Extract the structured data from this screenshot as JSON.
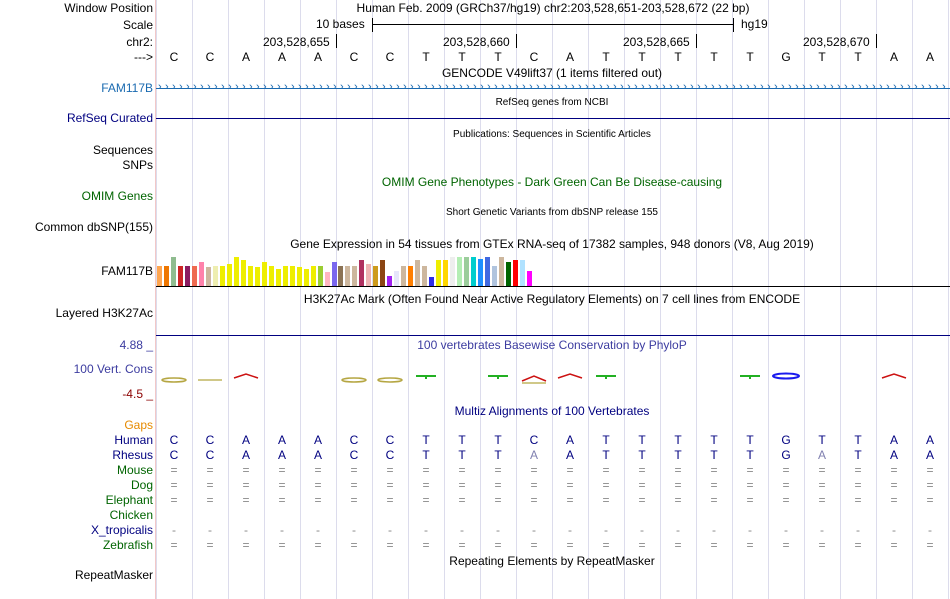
{
  "header": {
    "window_position_label": "Window Position",
    "scale_label": "Scale",
    "chr_label": "chr2:",
    "strand_label": "--->",
    "assembly_text": "Human Feb. 2009 (GRCh37/hg19)   chr2:203,528,651-203,528,672 (22 bp)",
    "scale_text": "10 bases",
    "scale_db": "hg19",
    "coord_ticks": [
      "203,528,655",
      "203,528,660",
      "203,528,665",
      "203,528,670"
    ]
  },
  "sequence": {
    "human": [
      "C",
      "C",
      "A",
      "A",
      "A",
      "C",
      "C",
      "T",
      "T",
      "T",
      "C",
      "A",
      "T",
      "T",
      "T",
      "T",
      "T",
      "G",
      "T",
      "T",
      "A",
      "A"
    ],
    "rhesus": [
      "C",
      "C",
      "A",
      "A",
      "A",
      "C",
      "C",
      "T",
      "T",
      "T",
      "A",
      "A",
      "T",
      "T",
      "T",
      "T",
      "T",
      "G",
      "A",
      "T",
      "A",
      "A"
    ]
  },
  "tracks": {
    "gencode": {
      "title": "GENCODE V49lift37 (1 items filtered out)",
      "label": "FAM117B"
    },
    "refseq": {
      "title": "RefSeq genes from NCBI",
      "label": "RefSeq Curated"
    },
    "publications": {
      "title": "Publications: Sequences in Scientific Articles",
      "label1": "Sequences",
      "label2": "SNPs"
    },
    "omim": {
      "title": "OMIM Gene Phenotypes - Dark Green Can Be Disease-causing",
      "label": "OMIM Genes"
    },
    "dbsnp": {
      "title": "Short Genetic Variants from dbSNP release 155",
      "label": "Common dbSNP(155)"
    },
    "gtex": {
      "title": "Gene Expression in 54 tissues from GTEx RNA-seq of 17382 samples, 948 donors (V8, Aug 2019)",
      "label": "FAM117B"
    },
    "h3k27ac": {
      "title": "H3K27Ac Mark (Often Found Near Active Regulatory Elements) on 7 cell lines from ENCODE",
      "label": "Layered H3K27Ac"
    },
    "phylop": {
      "title": "100 vertebrates Basewise Conservation by PhyloP",
      "label": "100 Vert. Cons",
      "max_label": "4.88 _",
      "min_label": "-4.5 _"
    },
    "multiz": {
      "title": "Multiz Alignments of 100 Vertebrates",
      "gaps_label": "Gaps"
    },
    "repeatmasker": {
      "title": "Repeating Elements by RepeatMasker",
      "label": "RepeatMasker"
    }
  },
  "species": [
    {
      "name": "Human",
      "color": "#000080",
      "row": "human"
    },
    {
      "name": "Rhesus",
      "color": "#000080",
      "row": "rhesus"
    },
    {
      "name": "Mouse",
      "color": "#006400",
      "row": "="
    },
    {
      "name": "Dog",
      "color": "#006400",
      "row": "="
    },
    {
      "name": "Elephant",
      "color": "#006400",
      "row": "="
    },
    {
      "name": "Chicken",
      "color": "#006400",
      "row": ""
    },
    {
      "name": "X_tropicalis",
      "color": "#000080",
      "row": "-"
    },
    {
      "name": "Zebrafish",
      "color": "#006400",
      "row": "="
    }
  ],
  "gtex_colors": [
    "#ffa54f",
    "#ee7600",
    "#8fbc8f",
    "#cd2626",
    "#8b1c62",
    "#ee6a50",
    "#ff82ab",
    "#cdb79e",
    "#eeeeb0",
    "#eeee00",
    "#eeee00",
    "#eeee00",
    "#eeee00",
    "#eeee00",
    "#eeee00",
    "#eeee00",
    "#eeee00",
    "#eeee00",
    "#eeee00",
    "#eeee00",
    "#eeee00",
    "#eeee00",
    "#eeee00",
    "#9acd32",
    "#ffb6c1",
    "#7a67ee",
    "#8b7355",
    "#cdb79e",
    "#cdb79e",
    "#b03060",
    "#eeb4b4",
    "#cd9b1d",
    "#8b4513",
    "#a020f0",
    "#e6e6fa",
    "#cdb79e",
    "#ff7f00",
    "#cdb79e",
    "#cdb79e",
    "#2e2ee6",
    "#eeee00",
    "#ffd700",
    "#eeeeee",
    "#b4eeb4",
    "#9bcd9b",
    "#00cdcd",
    "#1e90ff",
    "#4169e1",
    "#b0c4de",
    "#cdb79e",
    "#006400",
    "#ff0000",
    "#b0e2ff",
    "#ff00ff"
  ],
  "gtex_values": [
    0.6,
    0.6,
    0.85,
    0.6,
    0.6,
    0.6,
    0.7,
    0.55,
    0.6,
    0.6,
    0.65,
    0.85,
    0.75,
    0.6,
    0.55,
    0.7,
    0.6,
    0.5,
    0.6,
    0.6,
    0.55,
    0.5,
    0.6,
    0.6,
    0.4,
    0.7,
    0.6,
    0.6,
    0.6,
    0.75,
    0.65,
    0.6,
    0.75,
    0.3,
    0.45,
    0.6,
    0.6,
    0.75,
    0.6,
    0.25,
    0.75,
    0.75,
    0.85,
    0.85,
    0.85,
    0.85,
    0.8,
    0.85,
    0.6,
    0.85,
    0.7,
    0.75,
    0.75,
    0.45
  ],
  "colors": {
    "blue_label": "#1a6ab0",
    "navy": "#000080",
    "omim_green": "#006400",
    "gaps_orange": "#e68a00",
    "phylop_title": "#3c3ca0",
    "dark_red": "#8b0000"
  }
}
